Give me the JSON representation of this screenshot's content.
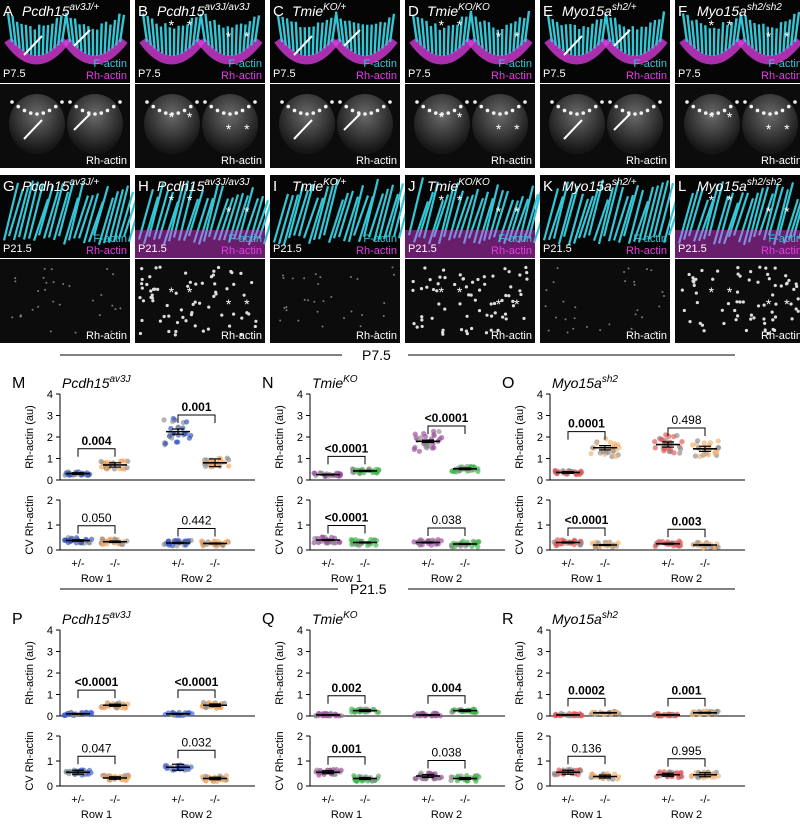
{
  "panels": [
    {
      "letter": "A",
      "genotype": "Pcdh15",
      "sup": "av3J/+",
      "stage": "P7.5",
      "arrows": 2,
      "stars": 0,
      "mutant": false
    },
    {
      "letter": "B",
      "genotype": "Pcdh15",
      "sup": "av3J/av3J",
      "stage": "P7.5",
      "arrows": 0,
      "stars": 4,
      "mutant": true
    },
    {
      "letter": "C",
      "genotype": "Tmie",
      "sup": "KO/+",
      "stage": "P7.5",
      "arrows": 2,
      "stars": 0,
      "mutant": false
    },
    {
      "letter": "D",
      "genotype": "Tmie",
      "sup": "KO/KO",
      "stage": "P7.5",
      "arrows": 0,
      "stars": 4,
      "mutant": true
    },
    {
      "letter": "E",
      "genotype": "Myo15a",
      "sup": "sh2/+",
      "stage": "P7.5",
      "arrows": 2,
      "stars": 0,
      "mutant": false
    },
    {
      "letter": "F",
      "genotype": "Myo15a",
      "sup": "sh2/sh2",
      "stage": "P7.5",
      "arrows": 0,
      "stars": 4,
      "mutant": true
    },
    {
      "letter": "G",
      "genotype": "Pcdh15",
      "sup": "av3J/+",
      "stage": "P21.5",
      "arrows": 0,
      "stars": 0,
      "mutant": false
    },
    {
      "letter": "H",
      "genotype": "Pcdh15",
      "sup": "av3J/av3J",
      "stage": "P21.5",
      "arrows": 0,
      "stars": 4,
      "mutant": true
    },
    {
      "letter": "I",
      "genotype": "Tmie",
      "sup": "KO/+",
      "stage": "P21.5",
      "arrows": 0,
      "stars": 0,
      "mutant": false
    },
    {
      "letter": "J",
      "genotype": "Tmie",
      "sup": "KO/KO",
      "stage": "P21.5",
      "arrows": 0,
      "stars": 4,
      "mutant": true
    },
    {
      "letter": "K",
      "genotype": "Myo15a",
      "sup": "sh2/+",
      "stage": "P21.5",
      "arrows": 0,
      "stars": 0,
      "mutant": false
    },
    {
      "letter": "L",
      "genotype": "Myo15a",
      "sup": "sh2/sh2",
      "stage": "P21.5",
      "arrows": 0,
      "stars": 4,
      "mutant": true
    }
  ],
  "labels": {
    "factin": "F-actin",
    "rhactin": "Rh-actin",
    "star": "*"
  },
  "sections": [
    {
      "title": "P7.5"
    },
    {
      "title": "P21.5"
    }
  ],
  "colors": {
    "factin": "#35c6d6",
    "rhactin": "#e23ee6"
  },
  "chart_data": [
    {
      "letter": "M",
      "type": "scatter",
      "title_main": "Pcdh15",
      "title_sup": "av3J",
      "section": "P7.5",
      "color_het": "#2c4fb8",
      "color_mut": "#f0a460",
      "categories": [
        "+/-",
        "-/-",
        "+/-",
        "-/-"
      ],
      "groups": [
        "Row 1",
        "Row 2"
      ],
      "top": {
        "ylabel": "Rh-actin (au)",
        "ylim": [
          0,
          4
        ],
        "yticks": [
          0,
          1,
          2,
          3,
          4
        ],
        "means": [
          0.3,
          0.7,
          2.25,
          0.8
        ],
        "sem": [
          0.04,
          0.1,
          0.12,
          0.18
        ],
        "comparisons": [
          {
            "p": "0.004",
            "bold": true
          },
          {
            "p": "0.001",
            "bold": true
          }
        ]
      },
      "bottom": {
        "ylabel": "CV Rh-actin",
        "ylim": [
          0,
          2
        ],
        "yticks": [
          0,
          1,
          2
        ],
        "means": [
          0.38,
          0.33,
          0.28,
          0.26
        ],
        "sem": [
          0.03,
          0.03,
          0.02,
          0.02
        ],
        "comparisons": [
          {
            "p": "0.050",
            "bold": false
          },
          {
            "p": "0.442",
            "bold": false
          }
        ]
      }
    },
    {
      "letter": "N",
      "type": "scatter",
      "title_main": "Tmie",
      "title_sup": "KO",
      "section": "P7.5",
      "color_het": "#9a4a9a",
      "color_mut": "#3cb54a",
      "categories": [
        "+/-",
        "-/-",
        "+/-",
        "-/-"
      ],
      "groups": [
        "Row 1",
        "Row 2"
      ],
      "top": {
        "ylabel": "Rh-actin (au)",
        "ylim": [
          0,
          4
        ],
        "yticks": [
          0,
          1,
          2,
          3,
          4
        ],
        "means": [
          0.25,
          0.42,
          1.8,
          0.52
        ],
        "sem": [
          0.02,
          0.03,
          0.06,
          0.04
        ],
        "comparisons": [
          {
            "p": "<0.0001",
            "bold": true
          },
          {
            "p": "<0.0001",
            "bold": true
          }
        ]
      },
      "bottom": {
        "ylabel": "CV Rh-actin",
        "ylim": [
          0,
          2
        ],
        "yticks": [
          0,
          1,
          2
        ],
        "means": [
          0.4,
          0.3,
          0.3,
          0.24
        ],
        "sem": [
          0.02,
          0.02,
          0.02,
          0.02
        ],
        "comparisons": [
          {
            "p": "<0.0001",
            "bold": true
          },
          {
            "p": "0.038",
            "bold": false
          }
        ]
      }
    },
    {
      "letter": "O",
      "type": "scatter",
      "title_main": "Myo15a",
      "title_sup": "sh2",
      "section": "P7.5",
      "color_het": "#e05050",
      "color_mut": "#f0b070",
      "categories": [
        "+/-",
        "-/-",
        "+/-",
        "-/-"
      ],
      "groups": [
        "Row 1",
        "Row 2"
      ],
      "top": {
        "ylabel": "Rh-actin (au)",
        "ylim": [
          0,
          4
        ],
        "yticks": [
          0,
          1,
          2,
          3,
          4
        ],
        "means": [
          0.35,
          1.5,
          1.65,
          1.45
        ],
        "sem": [
          0.04,
          0.1,
          0.12,
          0.12
        ],
        "comparisons": [
          {
            "p": "0.0001",
            "bold": true
          },
          {
            "p": "0.498",
            "bold": false
          }
        ]
      },
      "bottom": {
        "ylabel": "CV Rh-actin",
        "ylim": [
          0,
          2
        ],
        "yticks": [
          0,
          1,
          2
        ],
        "means": [
          0.3,
          0.2,
          0.25,
          0.2
        ],
        "sem": [
          0.02,
          0.02,
          0.02,
          0.02
        ],
        "comparisons": [
          {
            "p": "<0.0001",
            "bold": true
          },
          {
            "p": "0.003",
            "bold": true
          }
        ]
      }
    },
    {
      "letter": "P",
      "type": "scatter",
      "title_main": "Pcdh15",
      "title_sup": "av3J",
      "section": "P21.5",
      "color_het": "#3a5fcf",
      "color_mut": "#f0a460",
      "categories": [
        "+/-",
        "-/-",
        "+/-",
        "-/-"
      ],
      "groups": [
        "Row 1",
        "Row 2"
      ],
      "top": {
        "ylabel": "Rh-actin (au)",
        "ylim": [
          0,
          4
        ],
        "yticks": [
          0,
          1,
          2,
          3,
          4
        ],
        "means": [
          0.1,
          0.5,
          0.1,
          0.5
        ],
        "sem": [
          0.02,
          0.05,
          0.02,
          0.06
        ],
        "comparisons": [
          {
            "p": "<0.0001",
            "bold": true
          },
          {
            "p": "<0.0001",
            "bold": true
          }
        ]
      },
      "bottom": {
        "ylabel": "CV Rh-actin",
        "ylim": [
          0,
          2
        ],
        "yticks": [
          0,
          1,
          2
        ],
        "means": [
          0.55,
          0.32,
          0.75,
          0.3
        ],
        "sem": [
          0.08,
          0.05,
          0.12,
          0.05
        ],
        "comparisons": [
          {
            "p": "0.047",
            "bold": false
          },
          {
            "p": "0.032",
            "bold": false
          }
        ]
      }
    },
    {
      "letter": "Q",
      "type": "scatter",
      "title_main": "Tmie",
      "title_sup": "KO",
      "section": "P21.5",
      "color_het": "#9a4a9a",
      "color_mut": "#3cb54a",
      "categories": [
        "+/-",
        "-/-",
        "+/-",
        "-/-"
      ],
      "groups": [
        "Row 1",
        "Row 2"
      ],
      "top": {
        "ylabel": "Rh-actin (au)",
        "ylim": [
          0,
          4
        ],
        "yticks": [
          0,
          1,
          2,
          3,
          4
        ],
        "means": [
          0.05,
          0.25,
          0.05,
          0.25
        ],
        "sem": [
          0.01,
          0.04,
          0.01,
          0.04
        ],
        "comparisons": [
          {
            "p": "0.002",
            "bold": true
          },
          {
            "p": "0.004",
            "bold": true
          }
        ]
      },
      "bottom": {
        "ylabel": "CV Rh-actin",
        "ylim": [
          0,
          2
        ],
        "yticks": [
          0,
          1,
          2
        ],
        "means": [
          0.55,
          0.3,
          0.4,
          0.3
        ],
        "sem": [
          0.06,
          0.04,
          0.06,
          0.04
        ],
        "comparisons": [
          {
            "p": "0.001",
            "bold": true
          },
          {
            "p": "0.038",
            "bold": false
          }
        ]
      }
    },
    {
      "letter": "R",
      "type": "scatter",
      "title_main": "Myo15a",
      "title_sup": "sh2",
      "section": "P21.5",
      "color_het": "#e05050",
      "color_mut": "#f0b070",
      "categories": [
        "+/-",
        "-/-",
        "+/-",
        "-/-"
      ],
      "groups": [
        "Row 1",
        "Row 2"
      ],
      "top": {
        "ylabel": "Rh-actin (au)",
        "ylim": [
          0,
          4
        ],
        "yticks": [
          0,
          1,
          2,
          3,
          4
        ],
        "means": [
          0.05,
          0.15,
          0.05,
          0.15
        ],
        "sem": [
          0.01,
          0.02,
          0.01,
          0.02
        ],
        "comparisons": [
          {
            "p": "0.0002",
            "bold": true
          },
          {
            "p": "0.001",
            "bold": true
          }
        ]
      },
      "bottom": {
        "ylabel": "CV Rh-actin",
        "ylim": [
          0,
          2
        ],
        "yticks": [
          0,
          1,
          2
        ],
        "means": [
          0.55,
          0.38,
          0.45,
          0.45
        ],
        "sem": [
          0.08,
          0.06,
          0.06,
          0.08
        ],
        "comparisons": [
          {
            "p": "0.136",
            "bold": false
          },
          {
            "p": "0.995",
            "bold": false
          }
        ]
      }
    }
  ]
}
